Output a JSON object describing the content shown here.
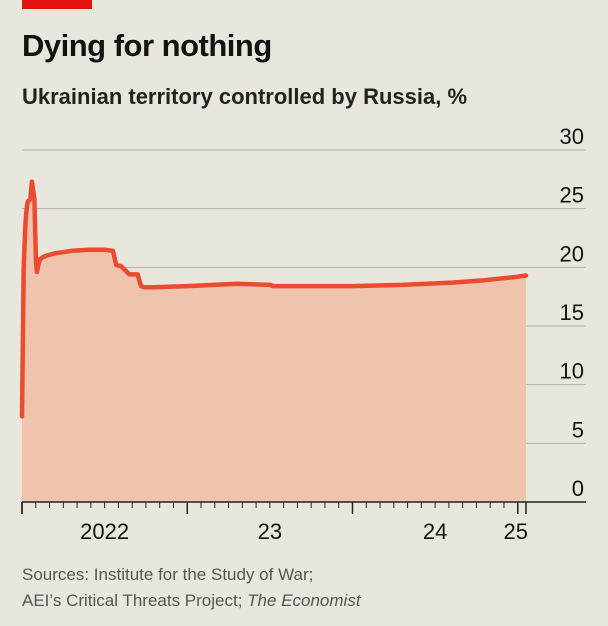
{
  "title": "Dying for nothing",
  "subtitle": "Ukrainian territory controlled by Russia, %",
  "source": {
    "line1": "Sources: Institute for the Study of War;",
    "line2_a": "AEI’s Critical Threats Project; ",
    "line2_b": "The Economist"
  },
  "colors": {
    "accent": "#e3120b",
    "line": "#eb4b2f",
    "area": "#efc3ac",
    "grid": "#b4b0a8",
    "text": "#121212",
    "muted": "#555555",
    "background": "#e9e6dd"
  },
  "chart_data": {
    "type": "area",
    "xlabel": "",
    "ylabel": "",
    "ylim": [
      0,
      30
    ],
    "xlim": [
      2022.0,
      2025.05
    ],
    "y_ticks": [
      0,
      5,
      10,
      15,
      20,
      25,
      30
    ],
    "y_tick_labels": [
      "0",
      "5",
      "10",
      "15",
      "20",
      "25",
      "30"
    ],
    "x_tick_labels": [
      {
        "label": "2022",
        "x": 2022.5
      },
      {
        "label": "23",
        "x": 2023.5
      },
      {
        "label": "24",
        "x": 2024.5
      },
      {
        "label": "25",
        "x": 2025.0
      }
    ],
    "grid": true,
    "legend": "none",
    "series": [
      {
        "x": [
          2022.0,
          2022.01,
          2022.02,
          2022.025,
          2022.03,
          2022.035,
          2022.05,
          2022.06,
          2022.075,
          2022.085,
          2022.09,
          2022.1,
          2022.11,
          2022.12,
          2022.13,
          2022.15,
          2022.2,
          2022.3,
          2022.4,
          2022.5,
          2022.55,
          2022.57,
          2022.6,
          2022.65,
          2022.7,
          2022.72,
          2022.74,
          2022.8,
          2023.0,
          2023.3,
          2023.5,
          2023.52,
          2023.8,
          2024.0,
          2024.3,
          2024.6,
          2024.8,
          2025.0,
          2025.05
        ],
        "y": [
          7.3,
          20.0,
          23.5,
          24.5,
          25.2,
          25.6,
          25.8,
          27.3,
          25.8,
          20.5,
          19.6,
          20.3,
          20.7,
          20.8,
          20.9,
          21.0,
          21.2,
          21.4,
          21.5,
          21.5,
          21.4,
          20.2,
          20.1,
          19.4,
          19.4,
          18.4,
          18.3,
          18.3,
          18.4,
          18.6,
          18.5,
          18.4,
          18.4,
          18.4,
          18.5,
          18.7,
          18.9,
          19.2,
          19.3
        ]
      }
    ]
  }
}
